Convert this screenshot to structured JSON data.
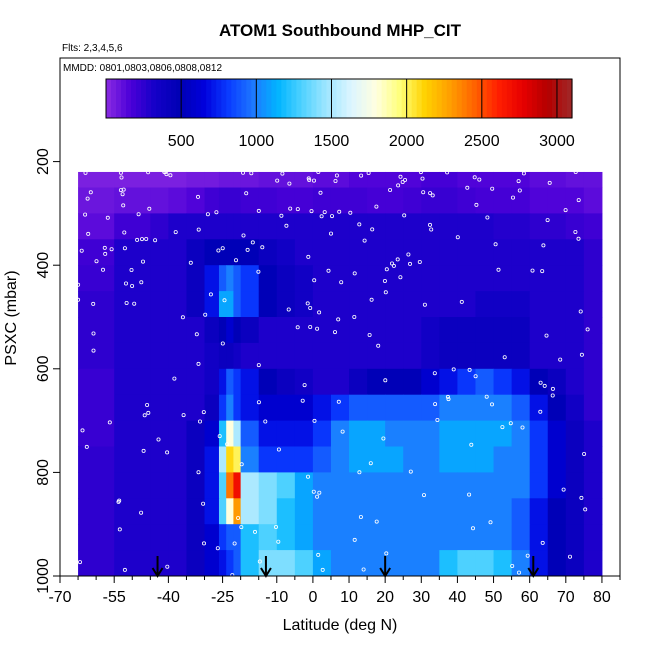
{
  "chart_data": {
    "type": "heatmap",
    "title": "ATOM1 Southbound MHP_CIT",
    "annotations": [
      "Flts: 2,3,4,5,6",
      "MMDD: 0801,0803,0806,0808,0812"
    ],
    "xlabel": "Latitude (deg N)",
    "ylabel": "PSXC (mbar)",
    "xlim": [
      -70,
      85
    ],
    "ylim": [
      1000,
      0
    ],
    "x_ticks": [
      -70,
      -55,
      -40,
      -25,
      -10,
      0,
      10,
      20,
      30,
      40,
      50,
      60,
      70,
      80
    ],
    "x_tick_labels": [
      "-70",
      "-55",
      "-40",
      "-25",
      "-10",
      "0",
      "10",
      "20",
      "30",
      "40",
      "50",
      "60",
      "70",
      "80"
    ],
    "y_ticks": [
      200,
      400,
      600,
      800,
      1000
    ],
    "y_tick_labels": [
      "200",
      "400",
      "600",
      "800",
      "1000"
    ],
    "colorbar": {
      "range": [
        0,
        3100
      ],
      "ticks": [
        500,
        1000,
        1500,
        2000,
        2500,
        3000
      ],
      "tick_labels": [
        "500",
        "1000",
        "1500",
        "2000",
        "2500",
        "3000"
      ],
      "colors": [
        "#8a2be2",
        "#4b00d8",
        "#1400c8",
        "#0000b4",
        "#0000dc",
        "#0a3cff",
        "#1e78ff",
        "#00b4ff",
        "#50d2ff",
        "#a0e6ff",
        "#dcf5ff",
        "#ffffe0",
        "#ffff78",
        "#ffd200",
        "#ffa000",
        "#ff6400",
        "#ff1e00",
        "#e60000",
        "#b40000",
        "#a02828"
      ]
    },
    "profile_markers_lat": [
      -43,
      -13,
      20,
      61
    ],
    "grid": false,
    "lat_bounds": [
      -65,
      -55,
      -45,
      -40,
      -35,
      -30,
      -26,
      -24,
      -22,
      -20,
      -15,
      -10,
      -5,
      0,
      5,
      10,
      15,
      20,
      25,
      30,
      35,
      40,
      45,
      50,
      55,
      60,
      65,
      70,
      75,
      80
    ],
    "pres_bounds": [
      220,
      250,
      300,
      350,
      400,
      450,
      500,
      550,
      600,
      650,
      700,
      750,
      800,
      850,
      900,
      950,
      1000
    ],
    "values": [
      [
        40,
        40,
        40,
        40,
        60,
        60,
        80,
        80,
        80,
        80,
        100,
        100,
        100,
        120,
        120,
        150,
        150,
        150,
        150,
        180,
        180,
        150,
        150,
        150,
        150,
        120,
        120,
        100,
        100
      ],
      [
        80,
        100,
        100,
        120,
        150,
        200,
        220,
        220,
        220,
        200,
        200,
        180,
        180,
        200,
        200,
        200,
        180,
        180,
        200,
        220,
        220,
        200,
        180,
        180,
        180,
        150,
        150,
        150,
        120
      ],
      [
        120,
        200,
        250,
        300,
        300,
        300,
        300,
        300,
        300,
        300,
        300,
        300,
        300,
        300,
        300,
        300,
        300,
        300,
        300,
        300,
        300,
        300,
        300,
        280,
        280,
        250,
        250,
        220,
        200
      ],
      [
        200,
        300,
        300,
        300,
        400,
        500,
        500,
        500,
        500,
        500,
        400,
        350,
        300,
        300,
        300,
        300,
        300,
        300,
        300,
        300,
        300,
        300,
        300,
        300,
        300,
        300,
        300,
        300,
        250
      ],
      [
        220,
        300,
        300,
        300,
        400,
        700,
        900,
        1000,
        900,
        800,
        500,
        400,
        350,
        300,
        300,
        300,
        300,
        300,
        300,
        300,
        300,
        300,
        300,
        300,
        300,
        300,
        300,
        300,
        250
      ],
      [
        250,
        300,
        300,
        300,
        400,
        700,
        1100,
        1100,
        900,
        800,
        500,
        400,
        350,
        300,
        300,
        300,
        300,
        300,
        300,
        300,
        300,
        300,
        350,
        350,
        350,
        300,
        300,
        300,
        250
      ],
      [
        250,
        300,
        300,
        300,
        300,
        400,
        500,
        600,
        500,
        400,
        300,
        300,
        300,
        300,
        300,
        300,
        300,
        300,
        300,
        350,
        400,
        400,
        400,
        400,
        400,
        300,
        300,
        300,
        250
      ],
      [
        250,
        300,
        300,
        300,
        300,
        350,
        400,
        400,
        350,
        300,
        300,
        300,
        300,
        300,
        300,
        300,
        300,
        300,
        300,
        350,
        400,
        400,
        400,
        400,
        400,
        300,
        300,
        300,
        250
      ],
      [
        220,
        300,
        300,
        300,
        300,
        350,
        700,
        900,
        800,
        700,
        500,
        400,
        350,
        300,
        300,
        400,
        500,
        500,
        500,
        600,
        700,
        800,
        900,
        800,
        700,
        500,
        400,
        300,
        250
      ],
      [
        220,
        300,
        300,
        300,
        300,
        400,
        800,
        1000,
        800,
        700,
        600,
        600,
        600,
        700,
        800,
        900,
        900,
        900,
        900,
        900,
        1000,
        1000,
        1000,
        1000,
        900,
        700,
        500,
        350,
        250
      ],
      [
        220,
        300,
        300,
        300,
        400,
        600,
        1200,
        1800,
        1500,
        900,
        700,
        700,
        700,
        800,
        1000,
        1100,
        1100,
        1000,
        1000,
        1000,
        1100,
        1100,
        1100,
        1100,
        1000,
        800,
        600,
        400,
        300
      ],
      [
        250,
        300,
        300,
        300,
        400,
        700,
        1500,
        2100,
        2000,
        1000,
        800,
        800,
        800,
        900,
        1000,
        1100,
        1100,
        1100,
        1000,
        1000,
        1100,
        1100,
        1100,
        1000,
        1000,
        800,
        600,
        400,
        300
      ],
      [
        250,
        300,
        300,
        300,
        400,
        700,
        1300,
        2400,
        2700,
        1500,
        1400,
        1300,
        1100,
        1000,
        1000,
        1000,
        1000,
        1000,
        1000,
        1000,
        1000,
        1000,
        1000,
        1000,
        1000,
        800,
        600,
        400,
        300
      ],
      [
        250,
        300,
        300,
        300,
        400,
        700,
        1300,
        1800,
        2300,
        1500,
        1400,
        1200,
        1100,
        1000,
        1000,
        1000,
        1000,
        1000,
        1000,
        1000,
        1000,
        1000,
        1000,
        1000,
        900,
        700,
        500,
        400,
        300
      ],
      [
        250,
        300,
        300,
        300,
        400,
        600,
        800,
        900,
        900,
        1200,
        1300,
        1200,
        1100,
        1000,
        1000,
        1000,
        1000,
        1000,
        1000,
        1000,
        1000,
        1000,
        1000,
        1000,
        900,
        700,
        500,
        400,
        300
      ],
      [
        250,
        300,
        300,
        300,
        400,
        600,
        700,
        800,
        900,
        1200,
        1400,
        1400,
        1300,
        1100,
        1000,
        1000,
        1000,
        1000,
        1000,
        1000,
        1200,
        1300,
        1300,
        1200,
        1000,
        700,
        500,
        400,
        300
      ],
      [
        300,
        300,
        300,
        300,
        400,
        600,
        700,
        800,
        900,
        1100,
        1200,
        1200,
        1100,
        1000,
        1000,
        1000,
        1100,
        1100,
        1000,
        1000,
        1100,
        1100,
        1100,
        1000,
        900,
        700,
        500,
        400,
        300
      ]
    ]
  }
}
